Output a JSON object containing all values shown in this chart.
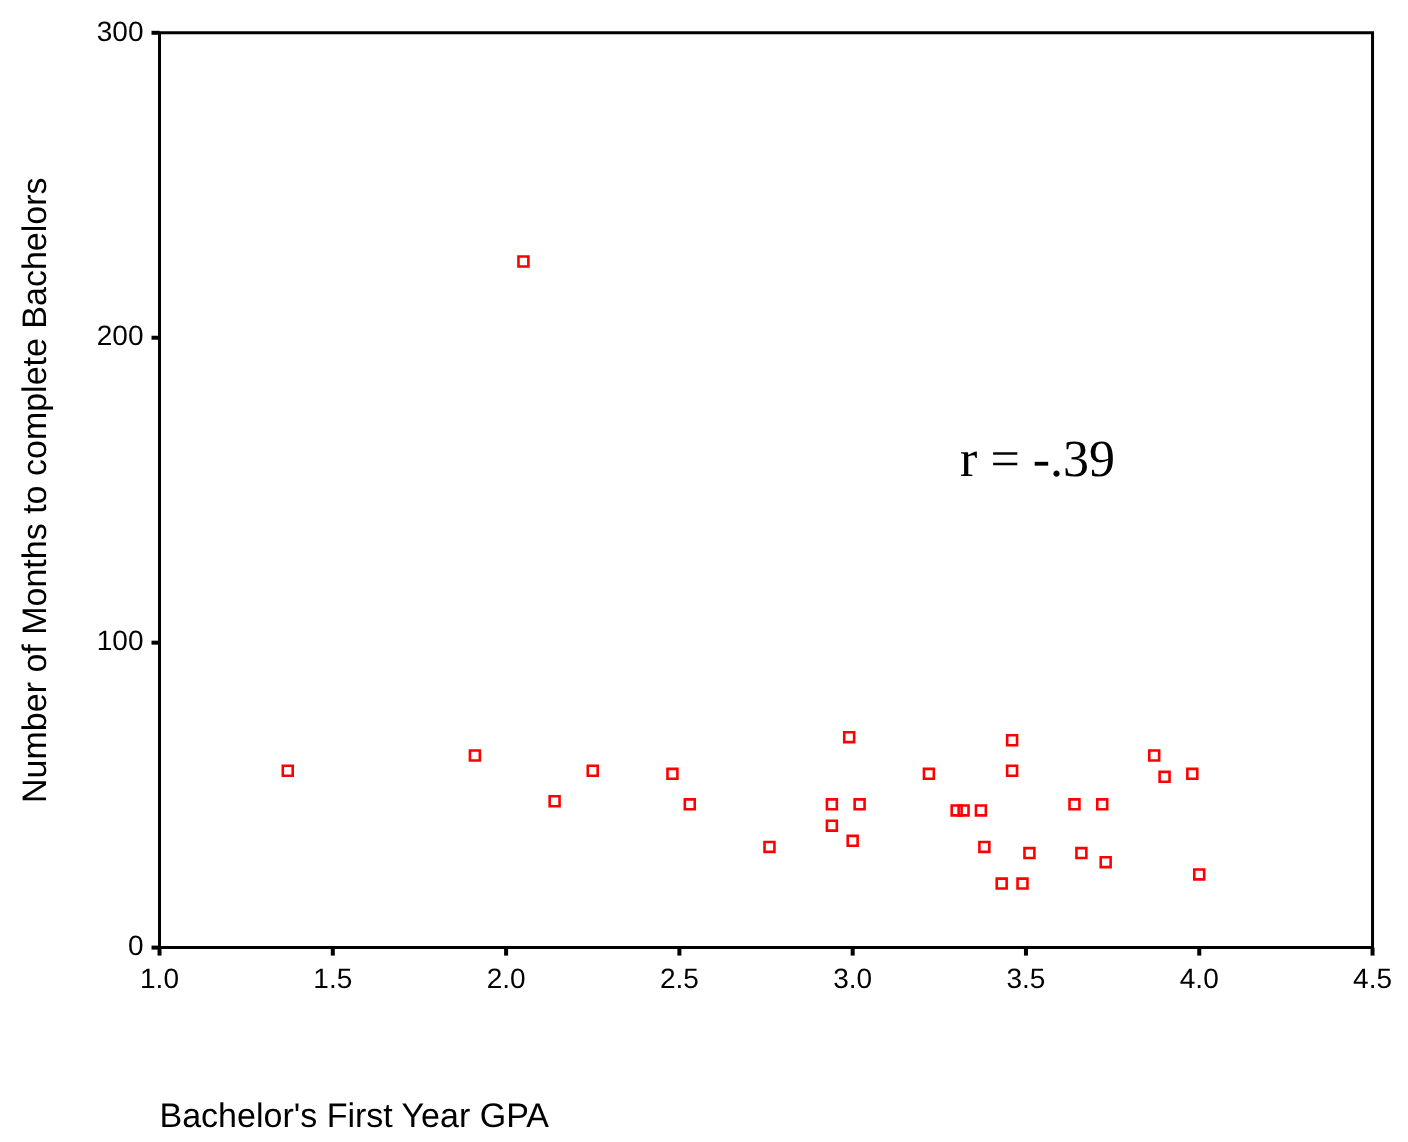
{
  "chart_data": {
    "type": "scatter",
    "xlabel": "Bachelor's First Year GPA",
    "ylabel": "Number of Months to complete Bachelors",
    "annotations": [
      "r = -.39"
    ],
    "x": [
      1.37,
      1.91,
      2.05,
      2.14,
      2.25,
      2.48,
      2.53,
      2.76,
      2.94,
      2.94,
      2.99,
      3.0,
      3.02,
      3.22,
      3.3,
      3.32,
      3.37,
      3.38,
      3.43,
      3.46,
      3.46,
      3.49,
      3.51,
      3.64,
      3.66,
      3.72,
      3.73,
      3.87,
      3.9,
      3.98,
      4.0
    ],
    "series": [
      {
        "color": "#ff0000",
        "values": [
          58,
          63,
          225,
          48,
          58,
          57,
          47,
          33,
          47,
          40,
          69,
          35,
          47,
          57,
          45,
          45,
          45,
          33,
          21,
          68,
          58,
          21,
          31,
          47,
          31,
          47,
          28,
          63,
          56,
          57,
          24
        ]
      }
    ],
    "xlim": [
      1,
      4.5
    ],
    "xticks": [
      {
        "value": 1,
        "label": "1.0"
      },
      {
        "value": 1.5,
        "label": "1.5"
      },
      {
        "value": 2,
        "label": "2.0"
      },
      {
        "value": 2.5,
        "label": "2.5"
      },
      {
        "value": 3,
        "label": "3.0"
      },
      {
        "value": 3.5,
        "label": "3.5"
      },
      {
        "value": 4,
        "label": "4.0"
      },
      {
        "value": 4.5,
        "label": "4.5"
      }
    ],
    "ylim": [
      0,
      300
    ],
    "yticks": [
      0,
      100,
      200,
      300
    ],
    "grid": false,
    "legend": false,
    "marker": "square"
  }
}
